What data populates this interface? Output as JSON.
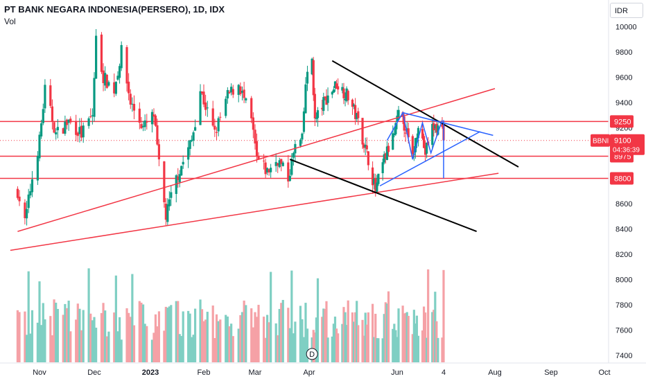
{
  "header": {
    "title": "PT BANK NEGARA INDONESIA(PERSERO), 1D, IDX",
    "volume_label": "Vol",
    "currency": "IDR"
  },
  "price_tag": {
    "symbol": "BBNI",
    "price": "9100",
    "countdown": "04:36:39",
    "color": "#f23645"
  },
  "marker": {
    "label": "D"
  },
  "colors": {
    "up": "#089981",
    "down": "#f23645",
    "volume_up": "#7fcfc3",
    "volume_down": "#f5a1a6",
    "level_line": "#f23645",
    "trend_black": "#000000",
    "pattern_blue": "#2962ff"
  },
  "chart_data": {
    "type": "candlestick",
    "y_axis": {
      "range": [
        7350,
        10200
      ],
      "ticks": [
        7400,
        7600,
        7800,
        8000,
        8200,
        8400,
        8600,
        8800,
        9000,
        9200,
        9400,
        9600,
        9800,
        10000
      ]
    },
    "x_axis": {
      "labels": [
        "Nov",
        "Dec",
        "2023",
        "Feb",
        "Mar",
        "Apr",
        "Jun",
        "4",
        "Aug",
        "Sep",
        "Oct"
      ]
    },
    "levels": [
      {
        "value": 9250,
        "label": "9250"
      },
      {
        "value": 8975,
        "label": "8975"
      },
      {
        "value": 8800,
        "label": "8800"
      }
    ],
    "last_price": 9100,
    "price_keypoints": [
      [
        "2022-10-20",
        8700
      ],
      [
        "2022-10-24",
        8450
      ],
      [
        "2022-10-28",
        8800
      ],
      [
        "2022-11-01",
        9100
      ],
      [
        "2022-11-04",
        9500
      ],
      [
        "2022-11-10",
        9150
      ],
      [
        "2022-11-17",
        9250
      ],
      [
        "2022-11-24",
        9150
      ],
      [
        "2022-11-30",
        9300
      ],
      [
        "2022-12-02",
        9900
      ],
      [
        "2022-12-06",
        9600
      ],
      [
        "2022-12-12",
        9500
      ],
      [
        "2022-12-16",
        9800
      ],
      [
        "2022-12-21",
        9400
      ],
      [
        "2022-12-28",
        9200
      ],
      [
        "2023-01-03",
        9300
      ],
      [
        "2023-01-06",
        8900
      ],
      [
        "2023-01-10",
        8500
      ],
      [
        "2023-01-16",
        8800
      ],
      [
        "2023-01-25",
        9100
      ],
      [
        "2023-01-30",
        9500
      ],
      [
        "2023-02-07",
        9150
      ],
      [
        "2023-02-14",
        9450
      ],
      [
        "2023-02-20",
        9550
      ],
      [
        "2023-02-27",
        9250
      ],
      [
        "2023-03-02",
        8950
      ],
      [
        "2023-03-08",
        8850
      ],
      [
        "2023-03-14",
        8950
      ],
      [
        "2023-03-20",
        8800
      ],
      [
        "2023-03-24",
        9050
      ],
      [
        "2023-03-28",
        9100
      ],
      [
        "2023-03-30",
        9550
      ],
      [
        "2023-04-03",
        9750
      ],
      [
        "2023-04-05",
        9250
      ],
      [
        "2023-04-11",
        9400
      ],
      [
        "2023-04-20",
        9550
      ],
      [
        "2023-04-28",
        9450
      ],
      [
        "2023-05-05",
        9250
      ],
      [
        "2023-05-12",
        8950
      ],
      [
        "2023-05-17",
        8700
      ],
      [
        "2023-05-23",
        8950
      ],
      [
        "2023-05-30",
        9150
      ],
      [
        "2023-06-02",
        9300
      ],
      [
        "2023-06-07",
        9200
      ],
      [
        "2023-06-12",
        8950
      ],
      [
        "2023-06-16",
        9250
      ],
      [
        "2023-06-21",
        9000
      ],
      [
        "2023-06-26",
        9200
      ],
      [
        "2023-07-03",
        9200
      ],
      [
        "2023-07-04",
        9100
      ]
    ],
    "volume_range": [
      0,
      1000
    ],
    "drawings": [
      {
        "name": "rising-trendline-upper",
        "color": "red",
        "points": [
          [
            "2022-10-20",
            8380
          ],
          [
            "2023-08-01",
            9510
          ]
        ]
      },
      {
        "name": "rising-trendline-lower",
        "color": "red",
        "points": [
          [
            "2022-10-16",
            8230
          ],
          [
            "2023-08-03",
            8840
          ]
        ]
      },
      {
        "name": "falling-channel-upper",
        "color": "black",
        "points": [
          [
            "2023-04-17",
            9730
          ],
          [
            "2023-08-14",
            8890
          ]
        ]
      },
      {
        "name": "falling-channel-lower",
        "color": "black",
        "points": [
          [
            "2023-03-21",
            8950
          ],
          [
            "2023-07-22",
            8380
          ]
        ]
      },
      {
        "name": "triangle-upper",
        "color": "blue",
        "points": [
          [
            "2023-06-05",
            9320
          ],
          [
            "2023-07-31",
            9140
          ]
        ]
      },
      {
        "name": "triangle-lower",
        "color": "blue",
        "points": [
          [
            "2023-05-20",
            8740
          ],
          [
            "2023-07-24",
            9170
          ]
        ]
      },
      {
        "name": "wave-pattern",
        "color": "blue",
        "points": [
          [
            "2023-05-25",
            9100
          ],
          [
            "2023-06-05",
            9320
          ],
          [
            "2023-06-12",
            8950
          ],
          [
            "2023-06-19",
            9240
          ],
          [
            "2023-06-25",
            9000
          ],
          [
            "2023-07-03",
            9260
          ]
        ]
      },
      {
        "name": "target-drop",
        "color": "blue",
        "points": [
          [
            "2023-07-04",
            9260
          ],
          [
            "2023-07-04",
            8800
          ]
        ]
      }
    ]
  }
}
